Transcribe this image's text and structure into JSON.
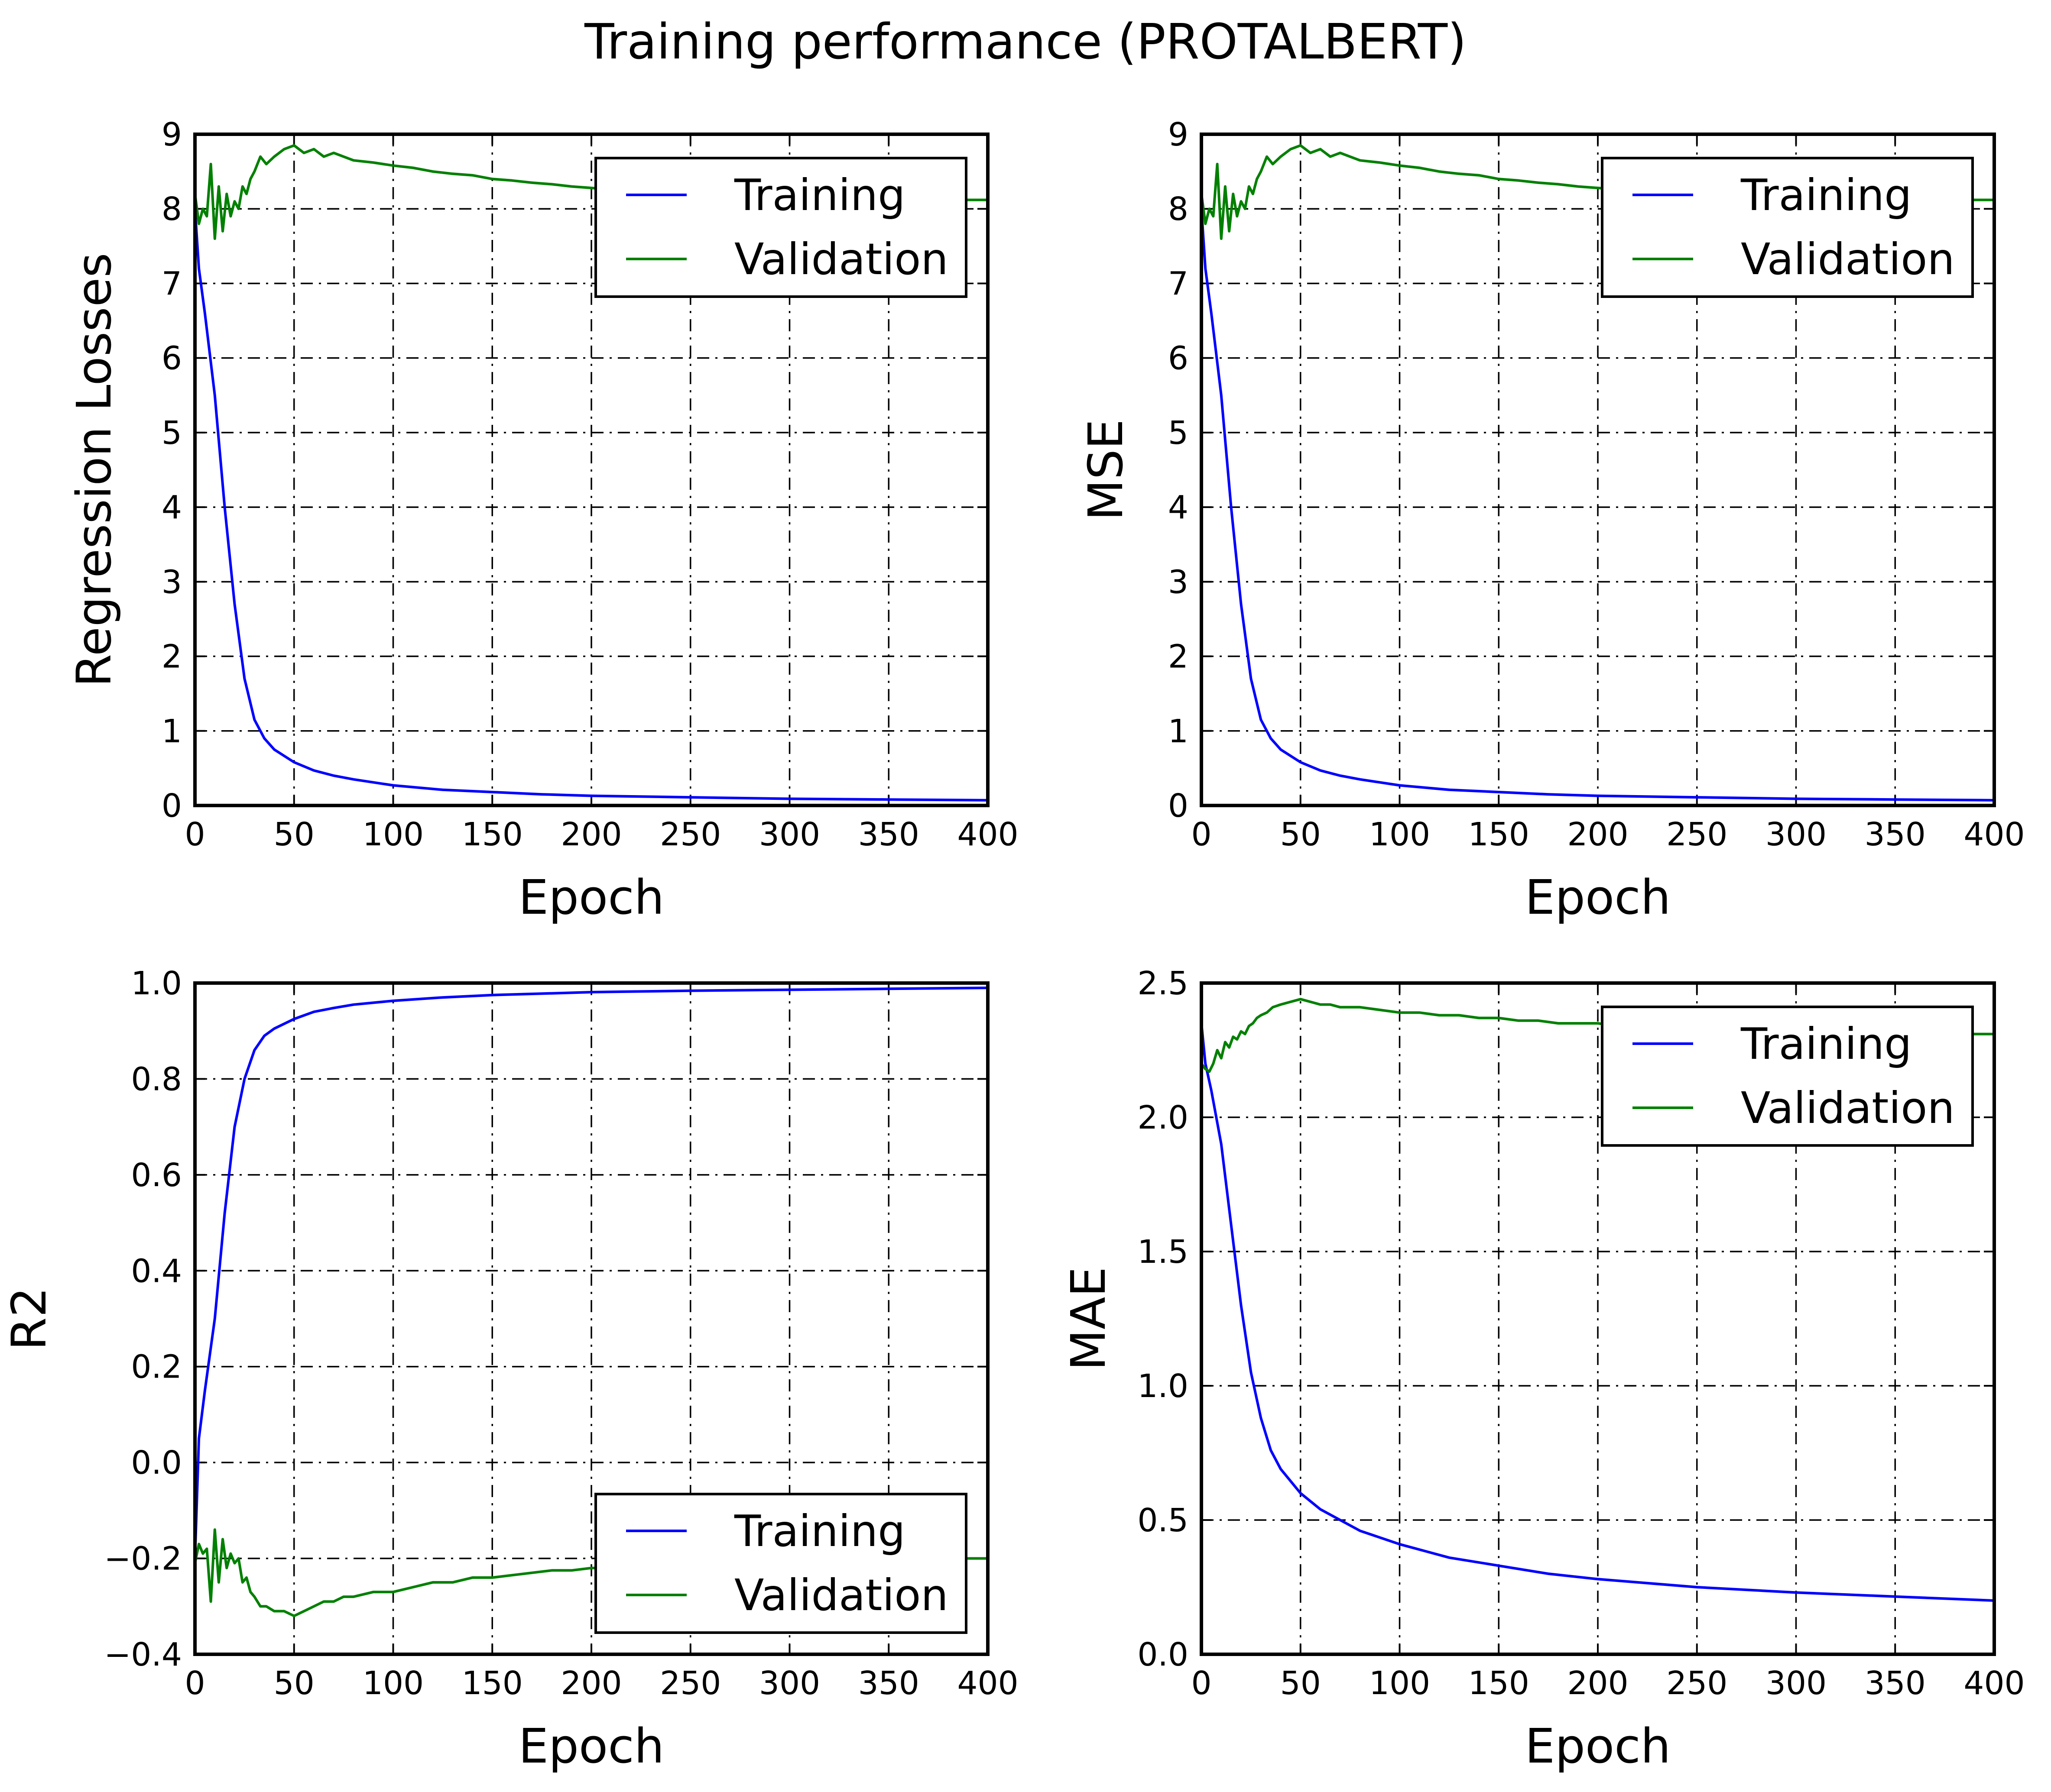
{
  "figure": {
    "title": "Training performance (PROTALBERT)"
  },
  "legend_labels": {
    "training": "Training",
    "validation": "Validation"
  },
  "colors": {
    "training": "#0000ff",
    "validation": "#008000"
  },
  "chart_data": [
    {
      "type": "line",
      "xlabel": "Epoch",
      "ylabel": "Regression Losses",
      "xlim": [
        0,
        400
      ],
      "ylim": [
        0,
        9
      ],
      "xticks": [
        "0",
        "50",
        "100",
        "150",
        "200",
        "250",
        "300",
        "350",
        "400"
      ],
      "yticks": [
        "0",
        "1",
        "2",
        "3",
        "4",
        "5",
        "6",
        "7",
        "8",
        "9"
      ],
      "grid": true,
      "legend_position": "upper-right",
      "series": [
        {
          "name": "Training",
          "color": "#0000ff",
          "x": [
            0,
            2,
            5,
            10,
            15,
            20,
            25,
            30,
            35,
            40,
            50,
            60,
            70,
            80,
            100,
            125,
            150,
            175,
            200,
            250,
            300,
            350,
            400
          ],
          "y": [
            8.0,
            7.2,
            6.6,
            5.5,
            4.0,
            2.7,
            1.7,
            1.15,
            0.9,
            0.75,
            0.58,
            0.47,
            0.4,
            0.35,
            0.27,
            0.21,
            0.18,
            0.15,
            0.13,
            0.11,
            0.09,
            0.08,
            0.07
          ]
        },
        {
          "name": "Validation",
          "color": "#008000",
          "x": [
            0,
            2,
            4,
            6,
            8,
            10,
            12,
            14,
            16,
            18,
            20,
            22,
            24,
            26,
            28,
            30,
            33,
            36,
            40,
            45,
            50,
            55,
            60,
            65,
            70,
            75,
            80,
            90,
            100,
            110,
            120,
            130,
            140,
            150,
            160,
            170,
            180,
            190,
            200,
            210,
            220,
            230,
            240,
            250,
            260,
            270,
            280,
            290,
            300,
            310,
            320,
            330,
            340,
            350,
            360,
            370,
            380,
            390,
            400
          ],
          "y": [
            8.2,
            7.8,
            8.0,
            7.9,
            8.6,
            7.6,
            8.3,
            7.7,
            8.2,
            7.9,
            8.1,
            8.0,
            8.3,
            8.2,
            8.4,
            8.5,
            8.7,
            8.6,
            8.7,
            8.8,
            8.85,
            8.75,
            8.8,
            8.7,
            8.75,
            8.7,
            8.65,
            8.62,
            8.58,
            8.55,
            8.5,
            8.47,
            8.45,
            8.4,
            8.38,
            8.35,
            8.33,
            8.3,
            8.28,
            8.26,
            8.25,
            8.24,
            8.22,
            8.21,
            8.2,
            8.2,
            8.19,
            8.18,
            8.17,
            8.17,
            8.16,
            8.16,
            8.15,
            8.15,
            8.14,
            8.14,
            8.13,
            8.12,
            8.12
          ]
        }
      ]
    },
    {
      "type": "line",
      "xlabel": "Epoch",
      "ylabel": "MSE",
      "xlim": [
        0,
        400
      ],
      "ylim": [
        0,
        9
      ],
      "xticks": [
        "0",
        "50",
        "100",
        "150",
        "200",
        "250",
        "300",
        "350",
        "400"
      ],
      "yticks": [
        "0",
        "1",
        "2",
        "3",
        "4",
        "5",
        "6",
        "7",
        "8",
        "9"
      ],
      "grid": true,
      "legend_position": "upper-right",
      "series": [
        {
          "name": "Training",
          "color": "#0000ff",
          "x": [
            0,
            2,
            5,
            10,
            15,
            20,
            25,
            30,
            35,
            40,
            50,
            60,
            70,
            80,
            100,
            125,
            150,
            175,
            200,
            250,
            300,
            350,
            400
          ],
          "y": [
            8.0,
            7.2,
            6.6,
            5.5,
            4.0,
            2.7,
            1.7,
            1.15,
            0.9,
            0.75,
            0.58,
            0.47,
            0.4,
            0.35,
            0.27,
            0.21,
            0.18,
            0.15,
            0.13,
            0.11,
            0.09,
            0.08,
            0.07
          ]
        },
        {
          "name": "Validation",
          "color": "#008000",
          "x": [
            0,
            2,
            4,
            6,
            8,
            10,
            12,
            14,
            16,
            18,
            20,
            22,
            24,
            26,
            28,
            30,
            33,
            36,
            40,
            45,
            50,
            55,
            60,
            65,
            70,
            75,
            80,
            90,
            100,
            110,
            120,
            130,
            140,
            150,
            160,
            170,
            180,
            190,
            200,
            210,
            220,
            230,
            240,
            250,
            260,
            270,
            280,
            290,
            300,
            310,
            320,
            330,
            340,
            350,
            360,
            370,
            380,
            390,
            400
          ],
          "y": [
            8.2,
            7.8,
            8.0,
            7.9,
            8.6,
            7.6,
            8.3,
            7.7,
            8.2,
            7.9,
            8.1,
            8.0,
            8.3,
            8.2,
            8.4,
            8.5,
            8.7,
            8.6,
            8.7,
            8.8,
            8.85,
            8.75,
            8.8,
            8.7,
            8.75,
            8.7,
            8.65,
            8.62,
            8.58,
            8.55,
            8.5,
            8.47,
            8.45,
            8.4,
            8.38,
            8.35,
            8.33,
            8.3,
            8.28,
            8.26,
            8.25,
            8.24,
            8.22,
            8.21,
            8.2,
            8.2,
            8.19,
            8.18,
            8.17,
            8.17,
            8.16,
            8.16,
            8.15,
            8.15,
            8.14,
            8.14,
            8.13,
            8.12,
            8.12
          ]
        }
      ]
    },
    {
      "type": "line",
      "xlabel": "Epoch",
      "ylabel": "R2",
      "xlim": [
        0,
        400
      ],
      "ylim": [
        -0.4,
        1.0
      ],
      "xticks": [
        "0",
        "50",
        "100",
        "150",
        "200",
        "250",
        "300",
        "350",
        "400"
      ],
      "yticks": [
        "−0.4",
        "−0.2",
        "0.0",
        "0.2",
        "0.4",
        "0.6",
        "0.8",
        "1.0"
      ],
      "grid": true,
      "legend_position": "lower-right",
      "series": [
        {
          "name": "Training",
          "color": "#0000ff",
          "x": [
            0,
            2,
            5,
            10,
            15,
            20,
            25,
            30,
            35,
            40,
            50,
            60,
            70,
            80,
            100,
            125,
            150,
            175,
            200,
            250,
            300,
            350,
            400
          ],
          "y": [
            -0.2,
            0.05,
            0.15,
            0.3,
            0.52,
            0.7,
            0.8,
            0.86,
            0.89,
            0.905,
            0.925,
            0.94,
            0.948,
            0.955,
            0.963,
            0.97,
            0.975,
            0.978,
            0.981,
            0.984,
            0.986,
            0.988,
            0.99
          ]
        },
        {
          "name": "Validation",
          "color": "#008000",
          "x": [
            0,
            2,
            4,
            6,
            8,
            10,
            12,
            14,
            16,
            18,
            20,
            22,
            24,
            26,
            28,
            30,
            33,
            36,
            40,
            45,
            50,
            55,
            60,
            65,
            70,
            75,
            80,
            90,
            100,
            110,
            120,
            130,
            140,
            150,
            160,
            170,
            180,
            190,
            200,
            210,
            220,
            230,
            240,
            250,
            260,
            270,
            280,
            290,
            300,
            310,
            320,
            330,
            340,
            350,
            360,
            370,
            380,
            390,
            400
          ],
          "y": [
            -0.21,
            -0.17,
            -0.19,
            -0.18,
            -0.29,
            -0.14,
            -0.25,
            -0.16,
            -0.22,
            -0.19,
            -0.21,
            -0.2,
            -0.25,
            -0.24,
            -0.27,
            -0.28,
            -0.3,
            -0.3,
            -0.31,
            -0.31,
            -0.32,
            -0.31,
            -0.3,
            -0.29,
            -0.29,
            -0.28,
            -0.28,
            -0.27,
            -0.27,
            -0.26,
            -0.25,
            -0.25,
            -0.24,
            -0.24,
            -0.235,
            -0.23,
            -0.225,
            -0.225,
            -0.22,
            -0.22,
            -0.22,
            -0.215,
            -0.215,
            -0.21,
            -0.21,
            -0.21,
            -0.21,
            -0.21,
            -0.205,
            -0.205,
            -0.205,
            -0.205,
            -0.2,
            -0.2,
            -0.2,
            -0.2,
            -0.2,
            -0.2,
            -0.2
          ]
        }
      ]
    },
    {
      "type": "line",
      "xlabel": "Epoch",
      "ylabel": "MAE",
      "xlim": [
        0,
        400
      ],
      "ylim": [
        0.0,
        2.5
      ],
      "xticks": [
        "0",
        "50",
        "100",
        "150",
        "200",
        "250",
        "300",
        "350",
        "400"
      ],
      "yticks": [
        "0.0",
        "0.5",
        "1.0",
        "1.5",
        "2.0",
        "2.5"
      ],
      "grid": true,
      "legend_position": "upper-right",
      "series": [
        {
          "name": "Training",
          "color": "#0000ff",
          "x": [
            0,
            2,
            5,
            10,
            15,
            20,
            25,
            30,
            35,
            40,
            50,
            60,
            70,
            80,
            100,
            125,
            150,
            175,
            200,
            250,
            300,
            350,
            400
          ],
          "y": [
            2.35,
            2.2,
            2.1,
            1.9,
            1.6,
            1.3,
            1.05,
            0.88,
            0.76,
            0.69,
            0.6,
            0.54,
            0.5,
            0.46,
            0.41,
            0.36,
            0.33,
            0.3,
            0.28,
            0.25,
            0.23,
            0.215,
            0.2
          ]
        },
        {
          "name": "Validation",
          "color": "#008000",
          "x": [
            0,
            2,
            4,
            6,
            8,
            10,
            12,
            14,
            16,
            18,
            20,
            22,
            24,
            26,
            28,
            30,
            33,
            36,
            40,
            45,
            50,
            55,
            60,
            65,
            70,
            75,
            80,
            90,
            100,
            110,
            120,
            130,
            140,
            150,
            160,
            170,
            180,
            190,
            200,
            210,
            220,
            230,
            240,
            250,
            260,
            270,
            280,
            290,
            300,
            310,
            320,
            330,
            340,
            350,
            360,
            370,
            380,
            390,
            400
          ],
          "y": [
            2.2,
            2.18,
            2.17,
            2.2,
            2.25,
            2.22,
            2.28,
            2.26,
            2.3,
            2.29,
            2.32,
            2.31,
            2.34,
            2.35,
            2.37,
            2.38,
            2.39,
            2.41,
            2.42,
            2.43,
            2.44,
            2.43,
            2.42,
            2.42,
            2.41,
            2.41,
            2.41,
            2.4,
            2.39,
            2.39,
            2.38,
            2.38,
            2.37,
            2.37,
            2.36,
            2.36,
            2.35,
            2.35,
            2.35,
            2.34,
            2.34,
            2.34,
            2.34,
            2.33,
            2.33,
            2.33,
            2.33,
            2.32,
            2.32,
            2.32,
            2.32,
            2.32,
            2.31,
            2.31,
            2.31,
            2.31,
            2.31,
            2.31,
            2.31
          ]
        }
      ]
    }
  ]
}
